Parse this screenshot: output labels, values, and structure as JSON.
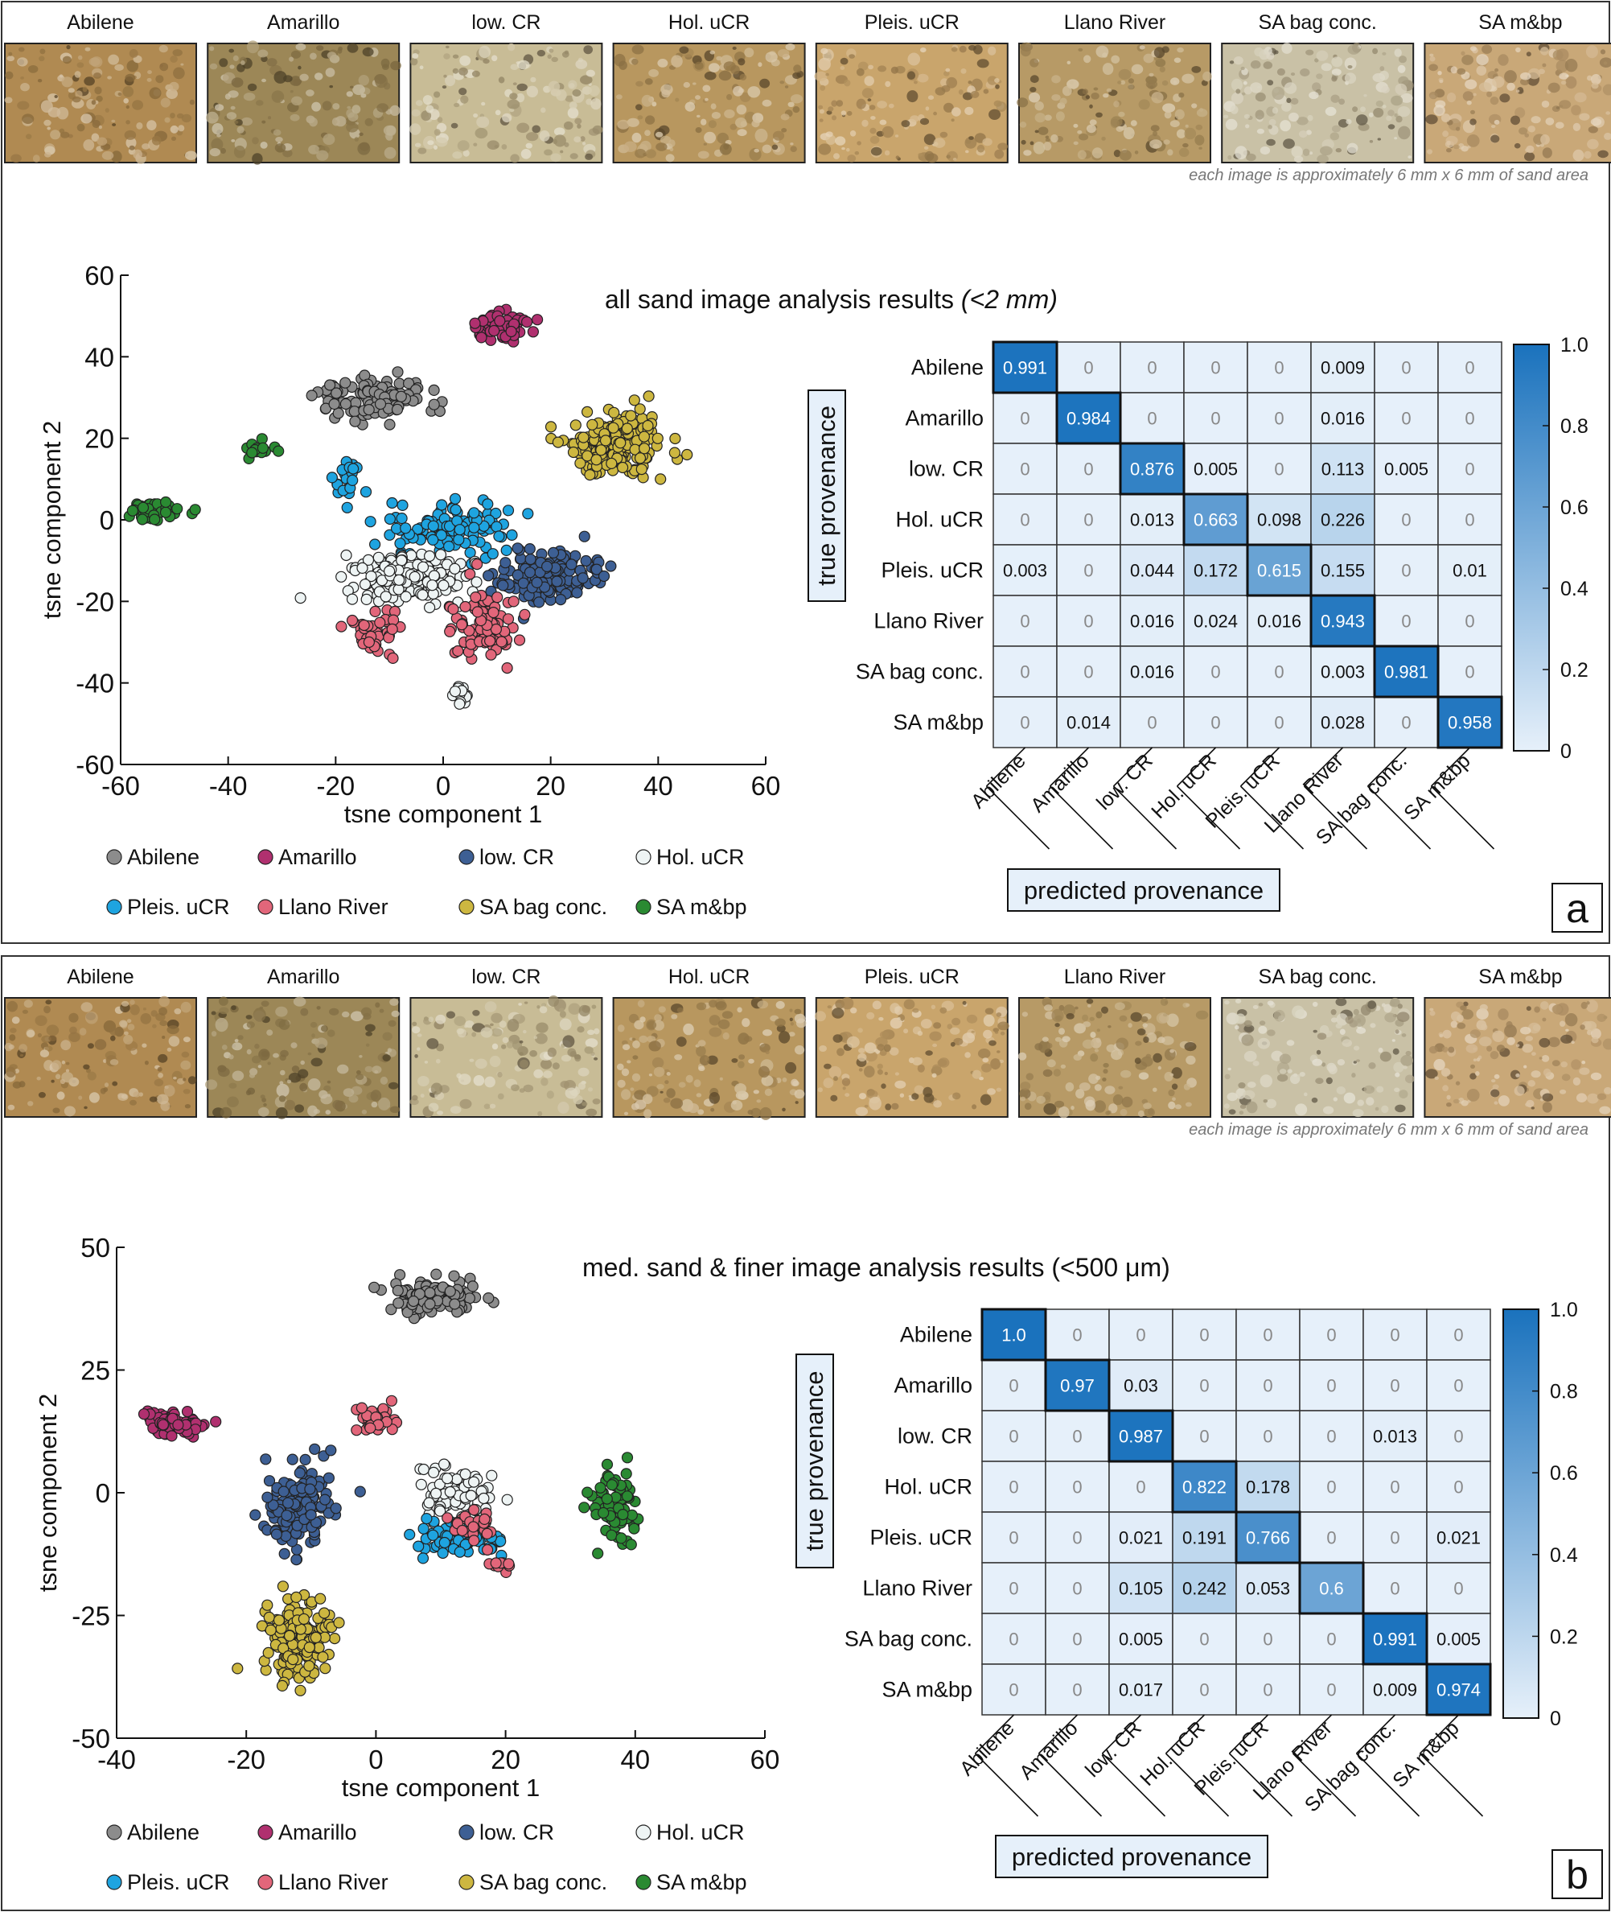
{
  "figure": {
    "image_note": "each image is approximately 6 mm x 6 mm of sand area",
    "axis_xlabel": "tsne component 1",
    "axis_ylabel": "tsne component 2",
    "true_label": "true provenance",
    "pred_label": "predicted provenance"
  },
  "classes": [
    "Abilene",
    "Amarillo",
    "low. CR",
    "Hol. uCR",
    "Pleis. uCR",
    "Llano River",
    "SA bag conc.",
    "SA m&bp"
  ],
  "colors": {
    "Abilene": "#8c8c8c",
    "Amarillo": "#b0306f",
    "low. CR": "#3d5f94",
    "Hol. uCR": "#eef4f4",
    "Pleis. uCR": "#1ea4e0",
    "Llano River": "#e2667a",
    "SA bag conc.": "#cdb740",
    "SA m&bp": "#2a8a32",
    "cm_low": "#e6f0fa",
    "cm_high": "#1a72bd",
    "photo_tints": [
      "#b08a52",
      "#9c8757",
      "#c8bc96",
      "#b8975f",
      "#c9a56c",
      "#b79a66",
      "#c9c1a6",
      "#c9a878"
    ]
  },
  "chart_data": [
    {
      "panel_label": "a",
      "type": "scatter",
      "title": "all sand image analysis results",
      "title_italic": "(<2 mm)",
      "xlabel": "tsne component 1",
      "ylabel": "tsne component 2",
      "xlim": [
        -60,
        60
      ],
      "ylim": [
        -60,
        60
      ],
      "xticks": [
        -60,
        -40,
        -20,
        0,
        20,
        40,
        60
      ],
      "yticks": [
        -60,
        -40,
        -20,
        0,
        20,
        40,
        60
      ],
      "clusters": [
        {
          "cls": "Abilene",
          "cx": -13,
          "cy": 30,
          "rx": 9,
          "ry": 5,
          "n": 110
        },
        {
          "cls": "Amarillo",
          "cx": 11,
          "cy": 47,
          "rx": 5.5,
          "ry": 3.5,
          "n": 60
        },
        {
          "cls": "SA bag conc.",
          "cx": 32,
          "cy": 19,
          "rx": 9,
          "ry": 9,
          "n": 200
        },
        {
          "cls": "SA m&bp",
          "cx": -54,
          "cy": 2,
          "rx": 6,
          "ry": 2,
          "n": 45
        },
        {
          "cls": "SA m&bp",
          "cx": -35,
          "cy": 17,
          "rx": 3,
          "ry": 1.5,
          "n": 14
        },
        {
          "cls": "Pleis. uCR",
          "cx": -18,
          "cy": 10,
          "rx": 2.5,
          "ry": 5,
          "n": 22
        },
        {
          "cls": "Pleis. uCR",
          "cx": 2,
          "cy": -2,
          "rx": 11,
          "ry": 7,
          "n": 110
        },
        {
          "cls": "low. CR",
          "cx": 20,
          "cy": -14,
          "rx": 9,
          "ry": 6,
          "n": 160
        },
        {
          "cls": "Hol. uCR",
          "cx": -8,
          "cy": -14,
          "rx": 12,
          "ry": 6,
          "n": 170
        },
        {
          "cls": "Llano River",
          "cx": 8,
          "cy": -26,
          "rx": 6,
          "ry": 8,
          "n": 100
        },
        {
          "cls": "Llano River",
          "cx": -13,
          "cy": -27,
          "rx": 5,
          "ry": 6,
          "n": 40
        },
        {
          "cls": "Hol. uCR",
          "cx": 3,
          "cy": -43,
          "rx": 1.5,
          "ry": 3,
          "n": 14
        }
      ],
      "matrix": [
        [
          "0.991",
          "0",
          "0",
          "0",
          "0",
          "0.009",
          "0",
          "0"
        ],
        [
          "0",
          "0.984",
          "0",
          "0",
          "0",
          "0.016",
          "0",
          "0"
        ],
        [
          "0",
          "0",
          "0.876",
          "0.005",
          "0",
          "0.113",
          "0.005",
          "0"
        ],
        [
          "0",
          "0",
          "0.013",
          "0.663",
          "0.098",
          "0.226",
          "0",
          "0"
        ],
        [
          "0.003",
          "0",
          "0.044",
          "0.172",
          "0.615",
          "0.155",
          "0",
          "0.01"
        ],
        [
          "0",
          "0",
          "0.016",
          "0.024",
          "0.016",
          "0.943",
          "0",
          "0"
        ],
        [
          "0",
          "0",
          "0.016",
          "0",
          "0",
          "0.003",
          "0.981",
          "0"
        ],
        [
          "0",
          "0.014",
          "0",
          "0",
          "0",
          "0.028",
          "0",
          "0.958"
        ]
      ],
      "colorbar_ticks": [
        "1.0",
        "0.8",
        "0.6",
        "0.4",
        "0.2",
        "0"
      ]
    },
    {
      "panel_label": "b",
      "type": "scatter",
      "title": "med. sand & finer image analysis results (<500 μm)",
      "title_italic": "",
      "xlabel": "tsne component 1",
      "ylabel": "tsne component 2",
      "xlim": [
        -40,
        60
      ],
      "ylim": [
        -50,
        50
      ],
      "xticks": [
        -40,
        -20,
        0,
        20,
        40,
        60
      ],
      "yticks": [
        -50,
        -25,
        0,
        25,
        50
      ],
      "clusters": [
        {
          "cls": "Abilene",
          "cx": 9,
          "cy": 40,
          "rx": 7,
          "ry": 3.5,
          "n": 110
        },
        {
          "cls": "Amarillo",
          "cx": -31,
          "cy": 14,
          "rx": 5,
          "ry": 3.5,
          "n": 70
        },
        {
          "cls": "Llano River",
          "cx": 0,
          "cy": 15,
          "rx": 3.5,
          "ry": 3,
          "n": 35
        },
        {
          "cls": "low. CR",
          "cx": -12,
          "cy": -3,
          "rx": 5,
          "ry": 8,
          "n": 140
        },
        {
          "cls": "SA m&bp",
          "cx": 37,
          "cy": -3,
          "rx": 3.5,
          "ry": 7,
          "n": 80
        },
        {
          "cls": "SA bag conc.",
          "cx": -12,
          "cy": -29,
          "rx": 5.5,
          "ry": 8,
          "n": 160
        },
        {
          "cls": "Hol. uCR",
          "cx": 12,
          "cy": 0,
          "rx": 5,
          "ry": 5,
          "n": 80
        },
        {
          "cls": "Pleis. uCR",
          "cx": 13,
          "cy": -10,
          "rx": 7,
          "ry": 4,
          "n": 70
        },
        {
          "cls": "Llano River",
          "cx": 15,
          "cy": -7,
          "rx": 4,
          "ry": 3,
          "n": 25
        },
        {
          "cls": "Llano River",
          "cx": 20,
          "cy": -15,
          "rx": 2,
          "ry": 1.5,
          "n": 10
        }
      ],
      "matrix": [
        [
          "1.0",
          "0",
          "0",
          "0",
          "0",
          "0",
          "0",
          "0"
        ],
        [
          "0",
          "0.97",
          "0.03",
          "0",
          "0",
          "0",
          "0",
          "0"
        ],
        [
          "0",
          "0",
          "0.987",
          "0",
          "0",
          "0",
          "0.013",
          "0"
        ],
        [
          "0",
          "0",
          "0",
          "0.822",
          "0.178",
          "0",
          "0",
          "0"
        ],
        [
          "0",
          "0",
          "0.021",
          "0.191",
          "0.766",
          "0",
          "0",
          "0.021"
        ],
        [
          "0",
          "0",
          "0.105",
          "0.242",
          "0.053",
          "0.6",
          "0",
          "0"
        ],
        [
          "0",
          "0",
          "0.005",
          "0",
          "0",
          "0",
          "0.991",
          "0.005"
        ],
        [
          "0",
          "0",
          "0.017",
          "0",
          "0",
          "0",
          "0.009",
          "0.974"
        ]
      ],
      "colorbar_ticks": [
        "1.0",
        "0.8",
        "0.6",
        "0.4",
        "0.2",
        "0"
      ]
    }
  ]
}
